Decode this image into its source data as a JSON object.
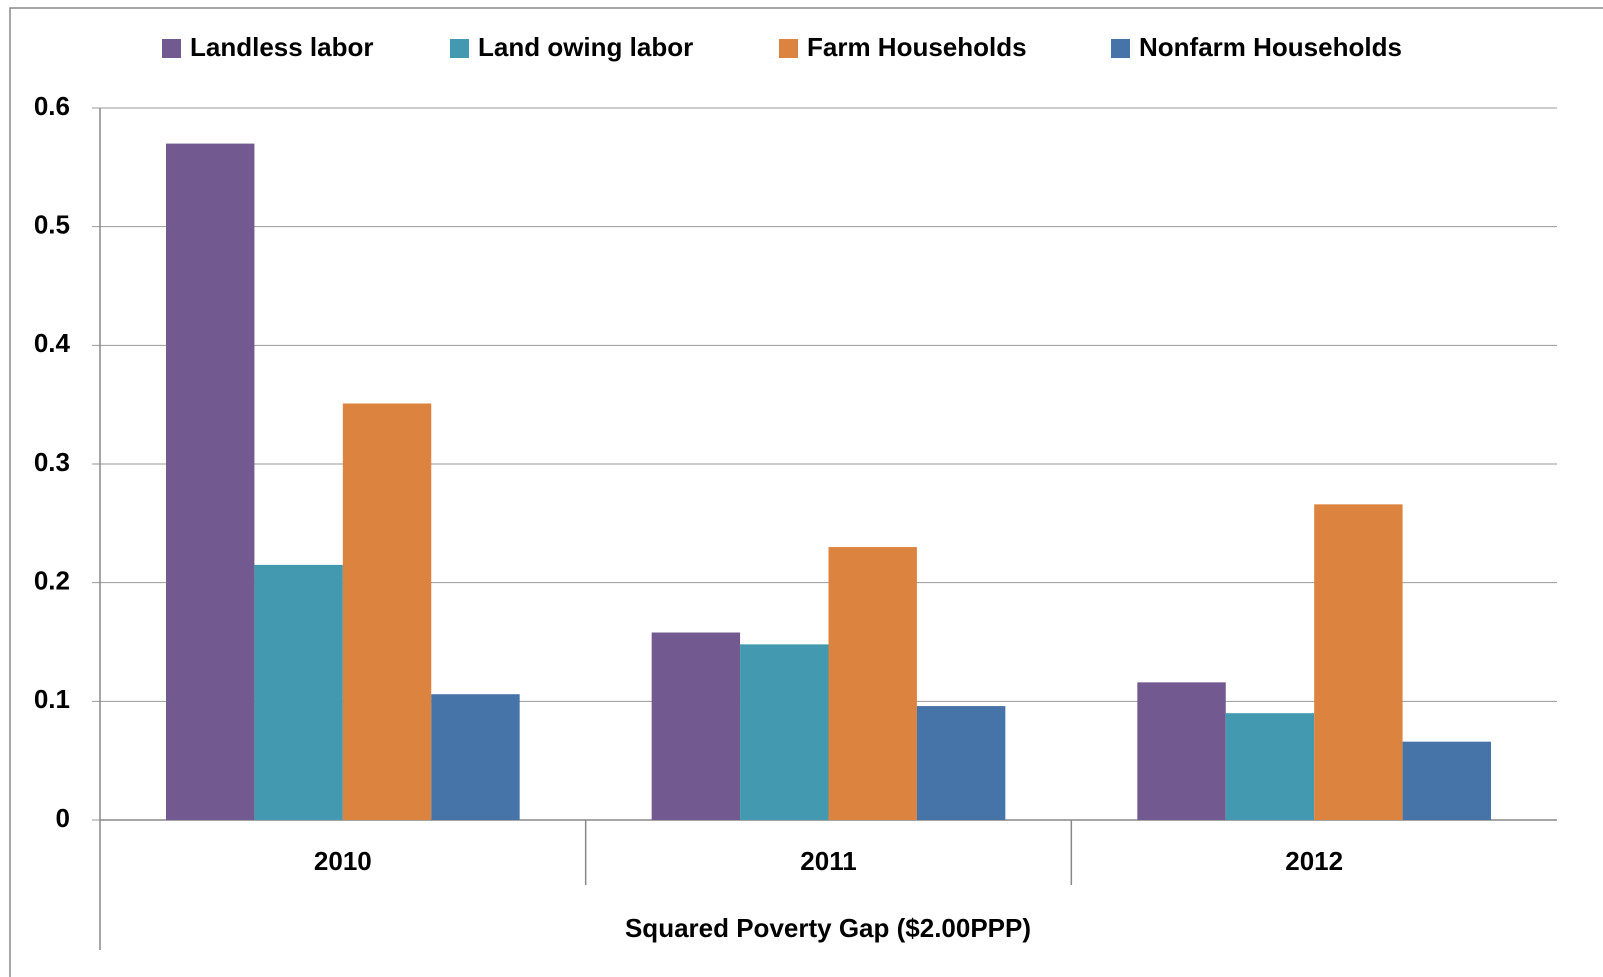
{
  "chart_data": {
    "type": "bar",
    "x_label": "Squared Poverty Gap ($2.00PPP)",
    "categories": [
      "2010",
      "2011",
      "2012"
    ],
    "series": [
      {
        "name": "Landless labor",
        "color": "#725990",
        "values": [
          0.57,
          0.158,
          0.116
        ]
      },
      {
        "name": "Land owing labor",
        "color": "#4299b0",
        "values": [
          0.215,
          0.148,
          0.09
        ]
      },
      {
        "name": "Farm Households",
        "color": "#dc843f",
        "values": [
          0.351,
          0.23,
          0.266
        ]
      },
      {
        "name": "Nonfarm Households",
        "color": "#4673a8",
        "values": [
          0.106,
          0.096,
          0.066
        ]
      }
    ],
    "ylim": [
      0,
      0.6
    ],
    "yticks": [
      0,
      0.1,
      0.2,
      0.3,
      0.4,
      0.5,
      0.6
    ],
    "grid": true,
    "legend": "top"
  }
}
